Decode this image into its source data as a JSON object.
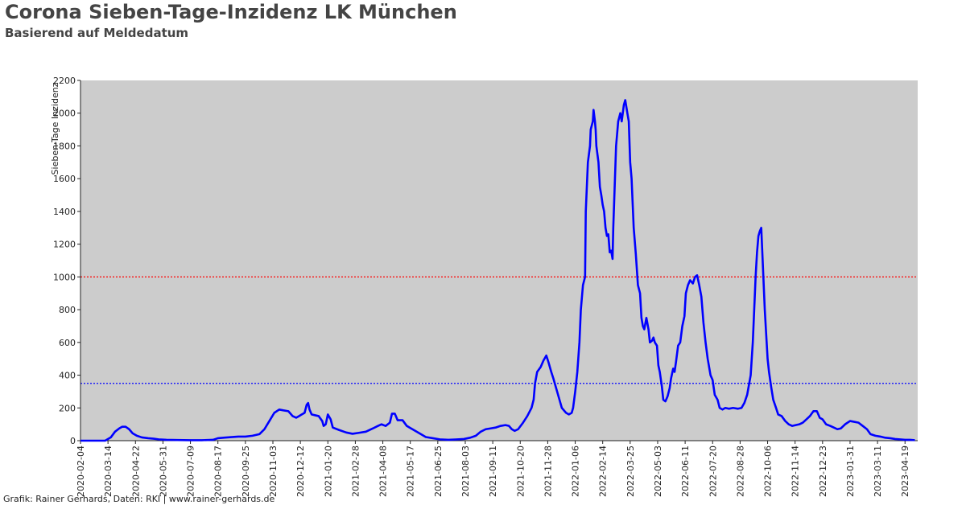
{
  "header": {
    "title": "Corona Sieben-Tage-Inzidenz LK München",
    "subtitle": "Basierend auf Meldedatum"
  },
  "footer": {
    "credit": "Grafik: Rainer Gerhards, Daten: RKI | www.rainer-gerhards.de"
  },
  "colors": {
    "plot_background": "#cccccc",
    "series_line": "#0000ff",
    "upper_reference_line": "#ff0000",
    "lower_reference_line": "#0000ff"
  },
  "chart_data": {
    "type": "line",
    "title": "Corona Sieben-Tage-Inzidenz LK München",
    "subtitle": "Basierend auf Meldedatum",
    "ylabel": "Sieben-Tage Inzidenz",
    "xlabel": "",
    "ylim": [
      0,
      2200
    ],
    "xlim": [
      "2020-02-04",
      "2023-05-07"
    ],
    "y_ticks": [
      0,
      200,
      400,
      600,
      800,
      1000,
      1200,
      1400,
      1600,
      1800,
      2000,
      2200
    ],
    "x_tick_labels": [
      "2020-02-04",
      "2020-03-14",
      "2020-04-22",
      "2020-05-31",
      "2020-07-09",
      "2020-08-17",
      "2020-09-25",
      "2020-11-03",
      "2020-12-12",
      "2021-01-20",
      "2021-02-28",
      "2021-04-08",
      "2021-05-17",
      "2021-06-25",
      "2021-08-03",
      "2021-09-11",
      "2021-10-20",
      "2021-11-28",
      "2022-01-06",
      "2022-02-14",
      "2022-03-25",
      "2022-05-03",
      "2022-06-11",
      "2022-07-20",
      "2022-08-28",
      "2022-10-06",
      "2022-11-14",
      "2022-12-23",
      "2023-01-31",
      "2023-03-11",
      "2023-04-19"
    ],
    "grid": false,
    "reference_lines": [
      {
        "y": 1000,
        "color": "#ff0000",
        "style": "dotted"
      },
      {
        "y": 350,
        "color": "#0000ff",
        "style": "dotted"
      }
    ],
    "series": [
      {
        "color": "#0000ff",
        "points": [
          [
            "2020-02-04",
            0
          ],
          [
            "2020-03-10",
            0
          ],
          [
            "2020-03-18",
            20
          ],
          [
            "2020-03-24",
            55
          ],
          [
            "2020-03-30",
            75
          ],
          [
            "2020-04-03",
            85
          ],
          [
            "2020-04-08",
            85
          ],
          [
            "2020-04-13",
            70
          ],
          [
            "2020-04-18",
            45
          ],
          [
            "2020-04-24",
            30
          ],
          [
            "2020-05-01",
            20
          ],
          [
            "2020-05-10",
            15
          ],
          [
            "2020-05-18",
            12
          ],
          [
            "2020-05-25",
            8
          ],
          [
            "2020-06-05",
            5
          ],
          [
            "2020-06-20",
            4
          ],
          [
            "2020-07-09",
            3
          ],
          [
            "2020-07-25",
            3
          ],
          [
            "2020-08-10",
            5
          ],
          [
            "2020-08-17",
            15
          ],
          [
            "2020-08-25",
            18
          ],
          [
            "2020-09-05",
            22
          ],
          [
            "2020-09-15",
            25
          ],
          [
            "2020-09-25",
            25
          ],
          [
            "2020-10-05",
            30
          ],
          [
            "2020-10-15",
            40
          ],
          [
            "2020-10-22",
            70
          ],
          [
            "2020-10-29",
            120
          ],
          [
            "2020-11-05",
            170
          ],
          [
            "2020-11-12",
            190
          ],
          [
            "2020-11-18",
            185
          ],
          [
            "2020-11-25",
            180
          ],
          [
            "2020-12-01",
            150
          ],
          [
            "2020-12-06",
            140
          ],
          [
            "2020-12-10",
            150
          ],
          [
            "2020-12-14",
            160
          ],
          [
            "2020-12-18",
            170
          ],
          [
            "2020-12-21",
            220
          ],
          [
            "2020-12-23",
            230
          ],
          [
            "2020-12-25",
            190
          ],
          [
            "2020-12-28",
            160
          ],
          [
            "2021-01-02",
            155
          ],
          [
            "2021-01-07",
            150
          ],
          [
            "2021-01-12",
            120
          ],
          [
            "2021-01-14",
            90
          ],
          [
            "2021-01-17",
            100
          ],
          [
            "2021-01-20",
            160
          ],
          [
            "2021-01-24",
            130
          ],
          [
            "2021-01-27",
            80
          ],
          [
            "2021-02-05",
            65
          ],
          [
            "2021-02-15",
            50
          ],
          [
            "2021-02-24",
            42
          ],
          [
            "2021-03-05",
            48
          ],
          [
            "2021-03-15",
            55
          ],
          [
            "2021-03-25",
            75
          ],
          [
            "2021-04-01",
            90
          ],
          [
            "2021-04-06",
            100
          ],
          [
            "2021-04-12",
            90
          ],
          [
            "2021-04-18",
            110
          ],
          [
            "2021-04-21",
            165
          ],
          [
            "2021-04-25",
            165
          ],
          [
            "2021-04-29",
            125
          ],
          [
            "2021-05-03",
            125
          ],
          [
            "2021-05-06",
            125
          ],
          [
            "2021-05-12",
            90
          ],
          [
            "2021-05-20",
            70
          ],
          [
            "2021-06-01",
            40
          ],
          [
            "2021-06-08",
            22
          ],
          [
            "2021-06-18",
            15
          ],
          [
            "2021-06-28",
            8
          ],
          [
            "2021-07-10",
            5
          ],
          [
            "2021-07-20",
            7
          ],
          [
            "2021-08-01",
            10
          ],
          [
            "2021-08-10",
            18
          ],
          [
            "2021-08-18",
            30
          ],
          [
            "2021-08-25",
            55
          ],
          [
            "2021-09-01",
            70
          ],
          [
            "2021-09-08",
            75
          ],
          [
            "2021-09-15",
            80
          ],
          [
            "2021-09-22",
            90
          ],
          [
            "2021-09-29",
            95
          ],
          [
            "2021-10-04",
            90
          ],
          [
            "2021-10-08",
            70
          ],
          [
            "2021-10-12",
            60
          ],
          [
            "2021-10-17",
            70
          ],
          [
            "2021-10-24",
            110
          ],
          [
            "2021-10-30",
            150
          ],
          [
            "2021-11-05",
            200
          ],
          [
            "2021-11-08",
            250
          ],
          [
            "2021-11-10",
            350
          ],
          [
            "2021-11-13",
            420
          ],
          [
            "2021-11-18",
            450
          ],
          [
            "2021-11-22",
            490
          ],
          [
            "2021-11-26",
            520
          ],
          [
            "2021-11-29",
            480
          ],
          [
            "2021-12-03",
            420
          ],
          [
            "2021-12-06",
            380
          ],
          [
            "2021-12-10",
            320
          ],
          [
            "2021-12-14",
            260
          ],
          [
            "2021-12-18",
            200
          ],
          [
            "2021-12-24",
            170
          ],
          [
            "2021-12-28",
            160
          ],
          [
            "2022-01-01",
            170
          ],
          [
            "2022-01-03",
            200
          ],
          [
            "2022-01-06",
            300
          ],
          [
            "2022-01-09",
            420
          ],
          [
            "2022-01-12",
            600
          ],
          [
            "2022-01-14",
            800
          ],
          [
            "2022-01-17",
            950
          ],
          [
            "2022-01-20",
            1000
          ],
          [
            "2022-01-21",
            1400
          ],
          [
            "2022-01-24",
            1700
          ],
          [
            "2022-01-27",
            1800
          ],
          [
            "2022-01-28",
            1900
          ],
          [
            "2022-01-31",
            1950
          ],
          [
            "2022-02-01",
            2020
          ],
          [
            "2022-02-03",
            1950
          ],
          [
            "2022-02-04",
            1900
          ],
          [
            "2022-02-05",
            1800
          ],
          [
            "2022-02-08",
            1700
          ],
          [
            "2022-02-10",
            1550
          ],
          [
            "2022-02-12",
            1500
          ],
          [
            "2022-02-14",
            1440
          ],
          [
            "2022-02-16",
            1400
          ],
          [
            "2022-02-18",
            1300
          ],
          [
            "2022-02-20",
            1250
          ],
          [
            "2022-02-22",
            1260
          ],
          [
            "2022-02-24",
            1150
          ],
          [
            "2022-02-26",
            1160
          ],
          [
            "2022-02-28",
            1110
          ],
          [
            "2022-03-01",
            1300
          ],
          [
            "2022-03-03",
            1550
          ],
          [
            "2022-03-05",
            1800
          ],
          [
            "2022-03-08",
            1950
          ],
          [
            "2022-03-11",
            2000
          ],
          [
            "2022-03-13",
            1950
          ],
          [
            "2022-03-16",
            2050
          ],
          [
            "2022-03-18",
            2080
          ],
          [
            "2022-03-21",
            2000
          ],
          [
            "2022-03-23",
            1950
          ],
          [
            "2022-03-25",
            1700
          ],
          [
            "2022-03-27",
            1600
          ],
          [
            "2022-03-30",
            1300
          ],
          [
            "2022-04-02",
            1140
          ],
          [
            "2022-04-05",
            950
          ],
          [
            "2022-04-08",
            900
          ],
          [
            "2022-04-10",
            750
          ],
          [
            "2022-04-12",
            700
          ],
          [
            "2022-04-14",
            680
          ],
          [
            "2022-04-17",
            750
          ],
          [
            "2022-04-20",
            680
          ],
          [
            "2022-04-22",
            600
          ],
          [
            "2022-04-25",
            610
          ],
          [
            "2022-04-27",
            630
          ],
          [
            "2022-04-29",
            600
          ],
          [
            "2022-05-02",
            580
          ],
          [
            "2022-05-04",
            460
          ],
          [
            "2022-05-06",
            420
          ],
          [
            "2022-05-09",
            330
          ],
          [
            "2022-05-11",
            250
          ],
          [
            "2022-05-14",
            240
          ],
          [
            "2022-05-17",
            270
          ],
          [
            "2022-05-20",
            320
          ],
          [
            "2022-05-22",
            380
          ],
          [
            "2022-05-25",
            440
          ],
          [
            "2022-05-27",
            420
          ],
          [
            "2022-05-29",
            480
          ],
          [
            "2022-06-01",
            580
          ],
          [
            "2022-06-04",
            600
          ],
          [
            "2022-06-07",
            700
          ],
          [
            "2022-06-10",
            760
          ],
          [
            "2022-06-12",
            900
          ],
          [
            "2022-06-15",
            950
          ],
          [
            "2022-06-18",
            980
          ],
          [
            "2022-06-22",
            960
          ],
          [
            "2022-06-25",
            1000
          ],
          [
            "2022-06-28",
            1010
          ],
          [
            "2022-07-01",
            950
          ],
          [
            "2022-07-04",
            880
          ],
          [
            "2022-07-07",
            720
          ],
          [
            "2022-07-10",
            600
          ],
          [
            "2022-07-13",
            500
          ],
          [
            "2022-07-17",
            400
          ],
          [
            "2022-07-20",
            370
          ],
          [
            "2022-07-23",
            280
          ],
          [
            "2022-07-27",
            250
          ],
          [
            "2022-07-30",
            200
          ],
          [
            "2022-08-03",
            190
          ],
          [
            "2022-08-07",
            200
          ],
          [
            "2022-08-12",
            195
          ],
          [
            "2022-08-18",
            200
          ],
          [
            "2022-08-25",
            195
          ],
          [
            "2022-08-30",
            200
          ],
          [
            "2022-09-03",
            230
          ],
          [
            "2022-09-07",
            280
          ],
          [
            "2022-09-12",
            400
          ],
          [
            "2022-09-15",
            600
          ],
          [
            "2022-09-17",
            800
          ],
          [
            "2022-09-19",
            1000
          ],
          [
            "2022-09-21",
            1150
          ],
          [
            "2022-09-23",
            1250
          ],
          [
            "2022-09-25",
            1280
          ],
          [
            "2022-09-27",
            1300
          ],
          [
            "2022-09-30",
            1000
          ],
          [
            "2022-10-02",
            800
          ],
          [
            "2022-10-04",
            650
          ],
          [
            "2022-10-06",
            500
          ],
          [
            "2022-10-08",
            420
          ],
          [
            "2022-10-11",
            330
          ],
          [
            "2022-10-14",
            250
          ],
          [
            "2022-10-18",
            200
          ],
          [
            "2022-10-21",
            160
          ],
          [
            "2022-10-26",
            150
          ],
          [
            "2022-10-31",
            120
          ],
          [
            "2022-11-05",
            100
          ],
          [
            "2022-11-10",
            90
          ],
          [
            "2022-11-15",
            95
          ],
          [
            "2022-11-20",
            100
          ],
          [
            "2022-11-25",
            110
          ],
          [
            "2022-11-30",
            130
          ],
          [
            "2022-12-05",
            150
          ],
          [
            "2022-12-10",
            180
          ],
          [
            "2022-12-15",
            180
          ],
          [
            "2022-12-19",
            140
          ],
          [
            "2022-12-23",
            130
          ],
          [
            "2022-12-28",
            100
          ],
          [
            "2023-01-03",
            90
          ],
          [
            "2023-01-08",
            80
          ],
          [
            "2023-01-13",
            70
          ],
          [
            "2023-01-18",
            75
          ],
          [
            "2023-01-24",
            100
          ],
          [
            "2023-01-31",
            120
          ],
          [
            "2023-02-06",
            115
          ],
          [
            "2023-02-12",
            110
          ],
          [
            "2023-02-18",
            90
          ],
          [
            "2023-02-24",
            70
          ],
          [
            "2023-03-01",
            40
          ],
          [
            "2023-03-08",
            30
          ],
          [
            "2023-03-15",
            25
          ],
          [
            "2023-03-22",
            18
          ],
          [
            "2023-03-29",
            15
          ],
          [
            "2023-04-05",
            10
          ],
          [
            "2023-04-12",
            8
          ],
          [
            "2023-04-19",
            5
          ],
          [
            "2023-04-26",
            5
          ],
          [
            "2023-05-03",
            3
          ]
        ]
      }
    ]
  }
}
